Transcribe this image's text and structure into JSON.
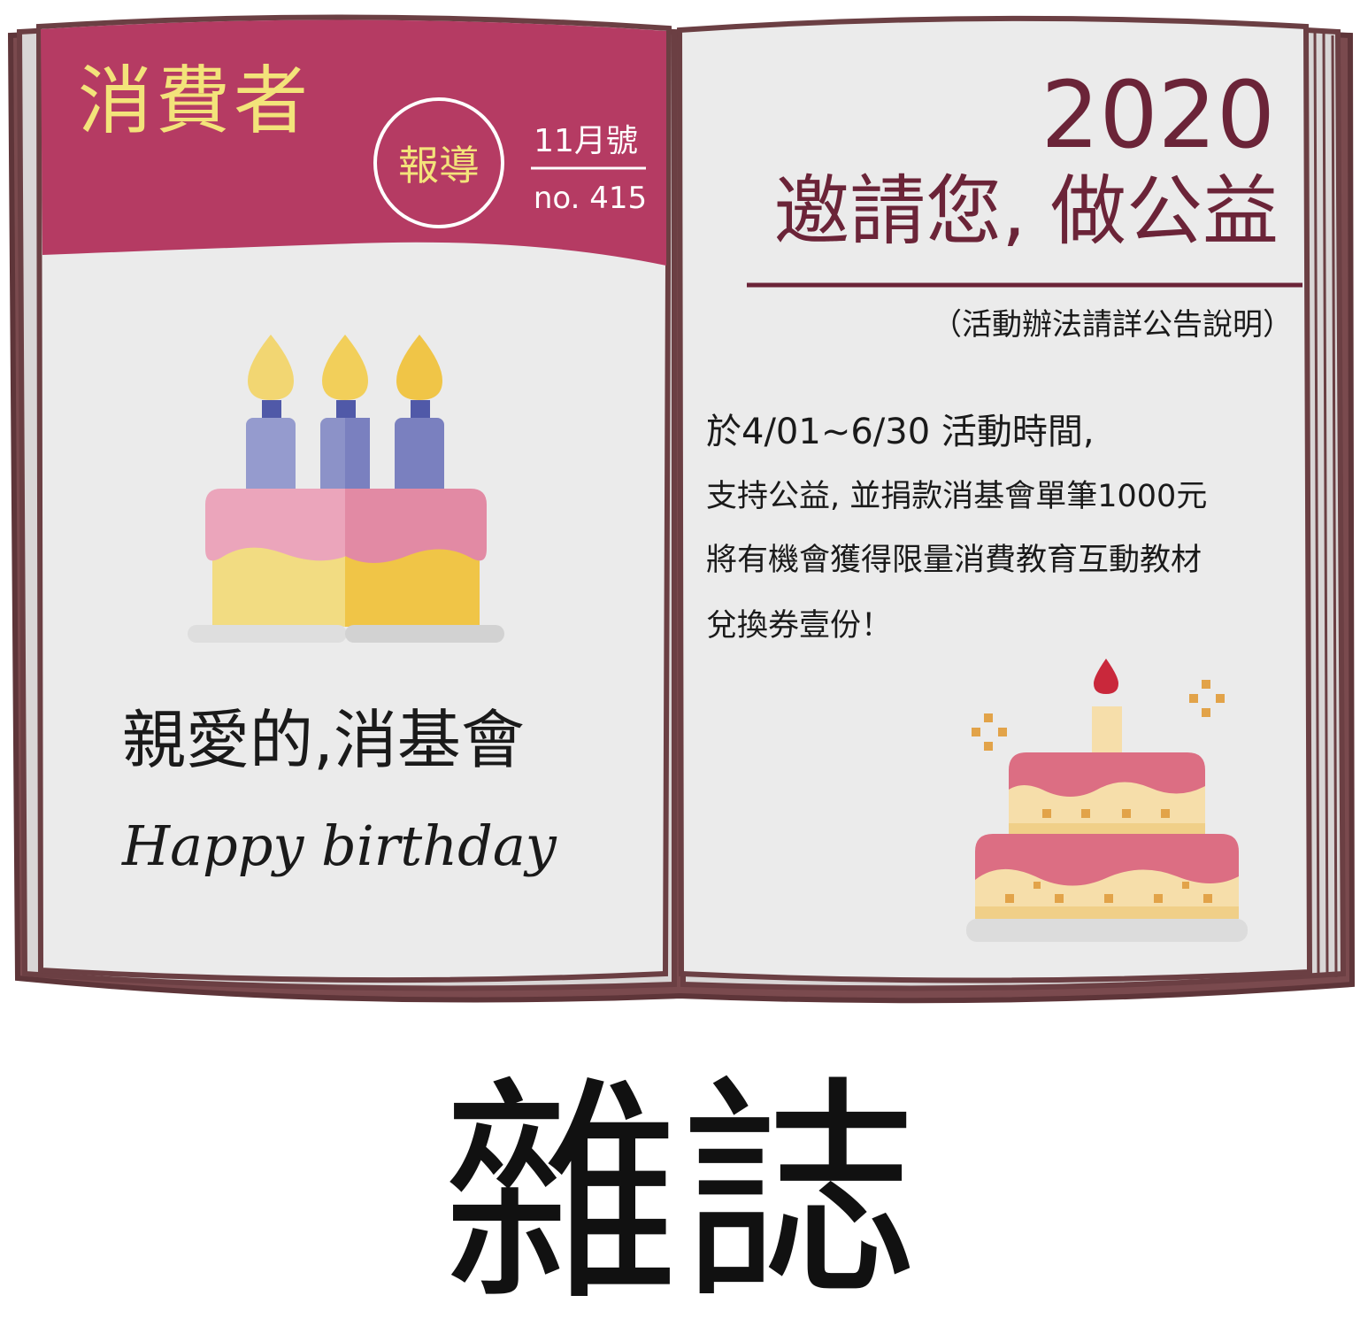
{
  "colors": {
    "cover": "#b53b63",
    "cover_text": "#f3e37a",
    "ink": "#6b2438",
    "page": "#ebebeb",
    "book_outline": "#6b3f43",
    "candle_purple": "#8f96cc",
    "candle_flame": "#f2cf5a",
    "cake_pink": "#e98fab",
    "cake_yellow": "#f2d672",
    "cake_red": "#dc6e83",
    "cake_cream": "#f6deaa"
  },
  "magazine": {
    "title": "消費者",
    "badge": "報導",
    "issue_month": "11月號",
    "issue_number": "no. 415"
  },
  "left_page": {
    "greeting": "親愛的,消基會",
    "birthday": "Happy birthday"
  },
  "right_page": {
    "year": "2020",
    "headline": "邀請您, 做公益",
    "note": "（活動辦法請詳公告說明）",
    "lines": [
      "於4/01~6/30 活動時間,",
      "支持公益, 並捐款消基會單筆1000元",
      "將有機會獲得限量消費教育互動教材",
      "兌換券壹份！"
    ]
  },
  "caption": "雜誌"
}
